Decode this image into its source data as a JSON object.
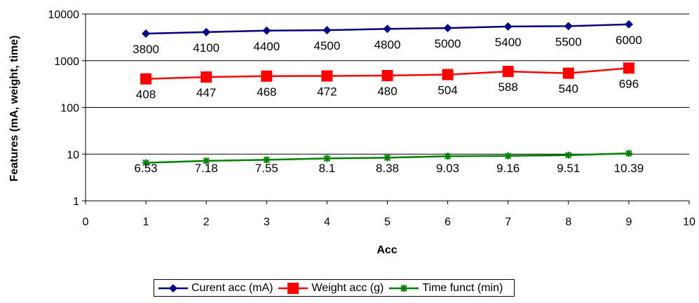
{
  "chart_data": {
    "type": "line",
    "xlabel": "Acc",
    "ylabel": "Features (mA, weight, time)",
    "x": [
      1,
      2,
      3,
      4,
      5,
      6,
      7,
      8,
      9
    ],
    "xlim": [
      0,
      10
    ],
    "x_ticks": [
      "0",
      "1",
      "2",
      "3",
      "4",
      "5",
      "6",
      "7",
      "8",
      "9",
      "10"
    ],
    "ylim": [
      1,
      10000
    ],
    "y_scale": "log",
    "y_ticks": [
      "1",
      "10",
      "100",
      "1000",
      "10000"
    ],
    "grid": "horizontal major gridlines",
    "legend_position": "bottom",
    "series": [
      {
        "name": "Curent acc (mA)",
        "color": "#000080",
        "marker": "diamond",
        "values": [
          3800,
          4100,
          4400,
          4500,
          4800,
          5000,
          5400,
          5500,
          6000
        ],
        "labels": [
          "3800",
          "4100",
          "4400",
          "4500",
          "4800",
          "5000",
          "5400",
          "5500",
          "6000"
        ]
      },
      {
        "name": "Weight acc (g)",
        "color": "#ff0000",
        "marker": "square",
        "values": [
          408,
          447,
          468,
          472,
          480,
          504,
          588,
          540,
          696
        ],
        "labels": [
          "408",
          "447",
          "468",
          "472",
          "480",
          "504",
          "588",
          "540",
          "696"
        ]
      },
      {
        "name": "Time funct (min)",
        "color": "#008000",
        "marker": "star",
        "values": [
          6.53,
          7.18,
          7.55,
          8.1,
          8.38,
          9.03,
          9.16,
          9.51,
          10.39
        ],
        "labels": [
          "6.53",
          "7.18",
          "7.55",
          "8.1",
          "8.38",
          "9.03",
          "9.16",
          "9.51",
          "10.39"
        ]
      }
    ]
  }
}
